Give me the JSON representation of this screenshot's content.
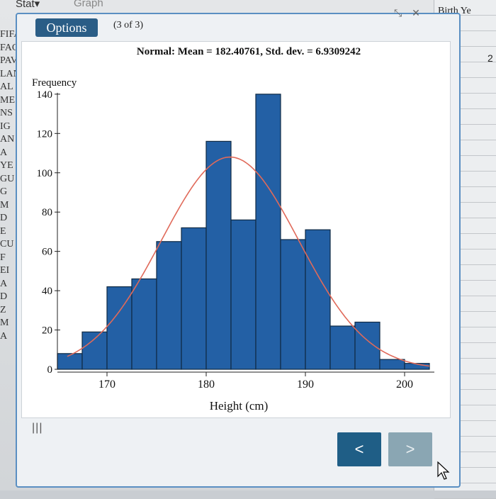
{
  "menubar": {
    "stat_label": "Stat▾",
    "graph_label": "Graph"
  },
  "left_col_labels": [
    "FIFA",
    "FAC",
    "PAV",
    "LAN",
    "AL",
    "ME",
    "NS",
    "IG",
    "AN",
    "A",
    "YE",
    "GU",
    "G",
    "M",
    "D",
    "E",
    "CU",
    "F",
    "EI",
    "A",
    "D",
    "Z",
    "M",
    "A"
  ],
  "right_header": "Birth Ye",
  "right_value": "2",
  "dialog": {
    "options_label": "Options",
    "page_count": "(3 of 3)",
    "menu_icon": "|||",
    "prev_label": "<",
    "next_label": ">",
    "win_ctrl_expand": "⤡",
    "win_ctrl_close": "✕"
  },
  "colors": {
    "bar_fill": "#2360a5",
    "bar_stroke": "#0f2a44",
    "curve": "#e06a5a",
    "button_primary": "#1f5e86"
  },
  "chart_data": {
    "type": "bar",
    "title": "Normal: Mean = 182.40761, Std. dev. = 6.9309242",
    "xlabel": "Height (cm)",
    "ylabel": "Frequency",
    "bins": [
      {
        "x0": 165.0,
        "x1": 167.5,
        "count": 8
      },
      {
        "x0": 167.5,
        "x1": 170.0,
        "count": 19
      },
      {
        "x0": 170.0,
        "x1": 172.5,
        "count": 42
      },
      {
        "x0": 172.5,
        "x1": 175.0,
        "count": 46
      },
      {
        "x0": 175.0,
        "x1": 177.5,
        "count": 65
      },
      {
        "x0": 177.5,
        "x1": 180.0,
        "count": 72
      },
      {
        "x0": 180.0,
        "x1": 182.5,
        "count": 116
      },
      {
        "x0": 182.5,
        "x1": 185.0,
        "count": 76
      },
      {
        "x0": 185.0,
        "x1": 187.5,
        "count": 140
      },
      {
        "x0": 187.5,
        "x1": 190.0,
        "count": 66
      },
      {
        "x0": 190.0,
        "x1": 192.5,
        "count": 71
      },
      {
        "x0": 192.5,
        "x1": 195.0,
        "count": 22
      },
      {
        "x0": 195.0,
        "x1": 197.5,
        "count": 24
      },
      {
        "x0": 197.5,
        "x1": 200.0,
        "count": 5
      },
      {
        "x0": 200.0,
        "x1": 202.5,
        "count": 3
      }
    ],
    "normal_curve": {
      "mean": 182.40761,
      "sd": 6.9309242,
      "peak": 108
    },
    "xlim": [
      165,
      203
    ],
    "ylim": [
      0,
      145
    ],
    "xticks": [
      170,
      180,
      190,
      200
    ],
    "yticks": [
      0,
      20,
      40,
      60,
      80,
      100,
      120,
      140
    ]
  }
}
